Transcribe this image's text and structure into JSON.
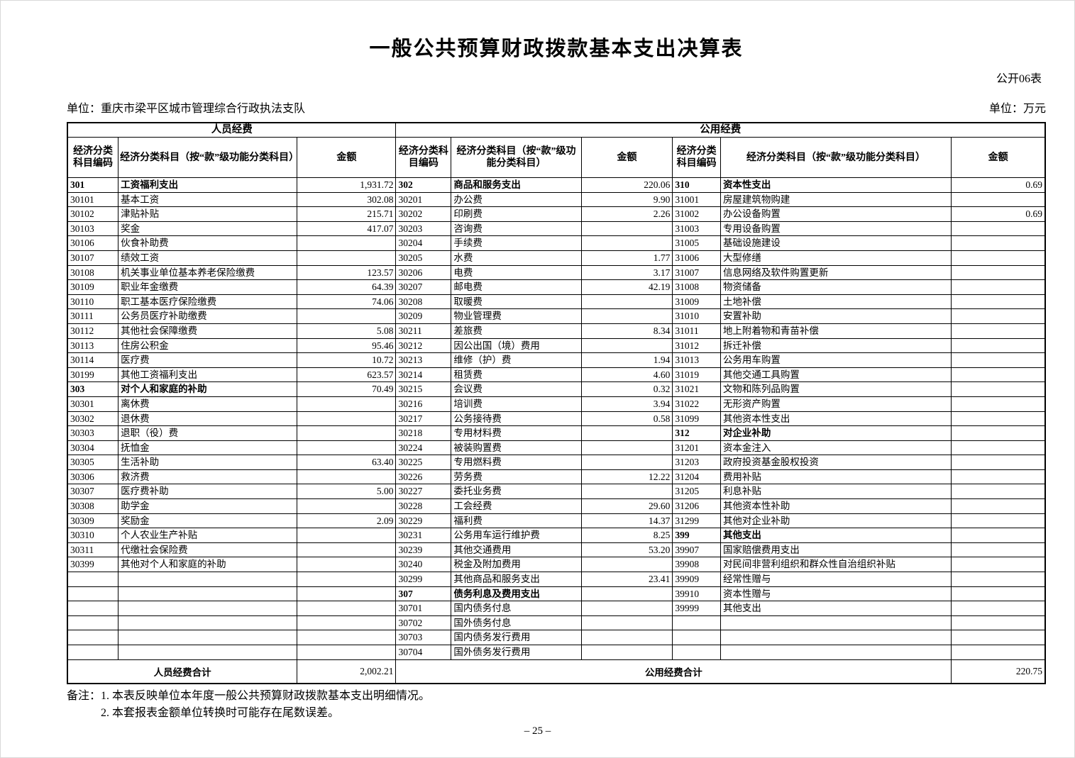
{
  "page": {
    "title": "一般公共预算财政拨款基本支出决算表",
    "form_code": "公开06表",
    "unit_left": "单位：重庆市梁平区城市管理综合行政执法支队",
    "unit_right": "单位：万元",
    "page_number": "–  25  –"
  },
  "notes": {
    "label": "备注：",
    "line1": "1. 本表反映单位本年度一般公共预算财政拨款基本支出明细情况。",
    "line2": "2. 本套报表金额单位转换时可能存在尾数误差。"
  },
  "table": {
    "group_headers": {
      "personnel": "人员经费",
      "public": "公用经费"
    },
    "column_headers": {
      "code": "经济分类科目编码",
      "subject": "经济分类科目（按“款”级功能分类科目）",
      "amount": "金额"
    },
    "totals": {
      "personnel_label": "人员经费合计",
      "personnel_amount": "2,002.21",
      "public_label": "公用经费合计",
      "public_amount": "220.75"
    },
    "sections": {
      "personnel": [
        {
          "code": "301",
          "name": "工资福利支出",
          "amount": "1,931.72",
          "cat": true
        },
        {
          "code": "30101",
          "name": "基本工资",
          "amount": "302.08"
        },
        {
          "code": "30102",
          "name": "津贴补贴",
          "amount": "215.71"
        },
        {
          "code": "30103",
          "name": "奖金",
          "amount": "417.07"
        },
        {
          "code": "30106",
          "name": "伙食补助费",
          "amount": ""
        },
        {
          "code": "30107",
          "name": "绩效工资",
          "amount": ""
        },
        {
          "code": "30108",
          "name": "机关事业单位基本养老保险缴费",
          "amount": "123.57"
        },
        {
          "code": "30109",
          "name": "职业年金缴费",
          "amount": "64.39"
        },
        {
          "code": "30110",
          "name": "职工基本医疗保险缴费",
          "amount": "74.06"
        },
        {
          "code": "30111",
          "name": "公务员医疗补助缴费",
          "amount": ""
        },
        {
          "code": "30112",
          "name": "其他社会保障缴费",
          "amount": "5.08"
        },
        {
          "code": "30113",
          "name": "住房公积金",
          "amount": "95.46"
        },
        {
          "code": "30114",
          "name": "医疗费",
          "amount": "10.72"
        },
        {
          "code": "30199",
          "name": "其他工资福利支出",
          "amount": "623.57"
        },
        {
          "code": "303",
          "name": "对个人和家庭的补助",
          "amount": "70.49",
          "cat": true
        },
        {
          "code": "30301",
          "name": "离休费",
          "amount": ""
        },
        {
          "code": "30302",
          "name": "退休费",
          "amount": ""
        },
        {
          "code": "30303",
          "name": "退职（役）费",
          "amount": ""
        },
        {
          "code": "30304",
          "name": "抚恤金",
          "amount": ""
        },
        {
          "code": "30305",
          "name": "生活补助",
          "amount": "63.40"
        },
        {
          "code": "30306",
          "name": "救济费",
          "amount": ""
        },
        {
          "code": "30307",
          "name": "医疗费补助",
          "amount": "5.00"
        },
        {
          "code": "30308",
          "name": "助学金",
          "amount": ""
        },
        {
          "code": "30309",
          "name": "奖励金",
          "amount": "2.09"
        },
        {
          "code": "30310",
          "name": "个人农业生产补贴",
          "amount": ""
        },
        {
          "code": "30311",
          "name": "代缴社会保险费",
          "amount": ""
        },
        {
          "code": "30399",
          "name": "其他对个人和家庭的补助",
          "amount": ""
        },
        {
          "code": "",
          "name": "",
          "amount": ""
        },
        {
          "code": "",
          "name": "",
          "amount": ""
        },
        {
          "code": "",
          "name": "",
          "amount": ""
        },
        {
          "code": "",
          "name": "",
          "amount": ""
        },
        {
          "code": "",
          "name": "",
          "amount": ""
        },
        {
          "code": "",
          "name": "",
          "amount": ""
        }
      ],
      "public_goods": [
        {
          "code": "302",
          "name": "商品和服务支出",
          "amount": "220.06",
          "cat": true
        },
        {
          "code": "30201",
          "name": "办公费",
          "amount": "9.90"
        },
        {
          "code": "30202",
          "name": "印刷费",
          "amount": "2.26"
        },
        {
          "code": "30203",
          "name": "咨询费",
          "amount": ""
        },
        {
          "code": "30204",
          "name": "手续费",
          "amount": ""
        },
        {
          "code": "30205",
          "name": "水费",
          "amount": "1.77"
        },
        {
          "code": "30206",
          "name": "电费",
          "amount": "3.17"
        },
        {
          "code": "30207",
          "name": "邮电费",
          "amount": "42.19"
        },
        {
          "code": "30208",
          "name": "取暖费",
          "amount": ""
        },
        {
          "code": "30209",
          "name": "物业管理费",
          "amount": ""
        },
        {
          "code": "30211",
          "name": "差旅费",
          "amount": "8.34"
        },
        {
          "code": "30212",
          "name": "因公出国（境）费用",
          "amount": ""
        },
        {
          "code": "30213",
          "name": "维修（护）费",
          "amount": "1.94"
        },
        {
          "code": "30214",
          "name": "租赁费",
          "amount": "4.60"
        },
        {
          "code": "30215",
          "name": "会议费",
          "amount": "0.32"
        },
        {
          "code": "30216",
          "name": "培训费",
          "amount": "3.94"
        },
        {
          "code": "30217",
          "name": "公务接待费",
          "amount": "0.58"
        },
        {
          "code": "30218",
          "name": "专用材料费",
          "amount": ""
        },
        {
          "code": "30224",
          "name": "被装购置费",
          "amount": ""
        },
        {
          "code": "30225",
          "name": "专用燃料费",
          "amount": ""
        },
        {
          "code": "30226",
          "name": "劳务费",
          "amount": "12.22"
        },
        {
          "code": "30227",
          "name": "委托业务费",
          "amount": ""
        },
        {
          "code": "30228",
          "name": "工会经费",
          "amount": "29.60"
        },
        {
          "code": "30229",
          "name": "福利费",
          "amount": "14.37"
        },
        {
          "code": "30231",
          "name": "公务用车运行维护费",
          "amount": "8.25"
        },
        {
          "code": "30239",
          "name": "其他交通费用",
          "amount": "53.20"
        },
        {
          "code": "30240",
          "name": "税金及附加费用",
          "amount": ""
        },
        {
          "code": "30299",
          "name": "其他商品和服务支出",
          "amount": "23.41"
        },
        {
          "code": "307",
          "name": "债务利息及费用支出",
          "amount": "",
          "cat": true
        },
        {
          "code": "30701",
          "name": "国内债务付息",
          "amount": ""
        },
        {
          "code": "30702",
          "name": "国外债务付息",
          "amount": ""
        },
        {
          "code": "30703",
          "name": "国内债务发行费用",
          "amount": ""
        },
        {
          "code": "30704",
          "name": "国外债务发行费用",
          "amount": ""
        }
      ],
      "public_capital": [
        {
          "code": "310",
          "name": "资本性支出",
          "amount": "0.69",
          "cat": true
        },
        {
          "code": "31001",
          "name": "房屋建筑物购建",
          "amount": ""
        },
        {
          "code": "31002",
          "name": "办公设备购置",
          "amount": "0.69"
        },
        {
          "code": "31003",
          "name": "专用设备购置",
          "amount": ""
        },
        {
          "code": "31005",
          "name": "基础设施建设",
          "amount": ""
        },
        {
          "code": "31006",
          "name": "大型修缮",
          "amount": ""
        },
        {
          "code": "31007",
          "name": "信息网络及软件购置更新",
          "amount": ""
        },
        {
          "code": "31008",
          "name": "物资储备",
          "amount": ""
        },
        {
          "code": "31009",
          "name": "土地补偿",
          "amount": ""
        },
        {
          "code": "31010",
          "name": "安置补助",
          "amount": ""
        },
        {
          "code": "31011",
          "name": "地上附着物和青苗补偿",
          "amount": ""
        },
        {
          "code": "31012",
          "name": "拆迁补偿",
          "amount": ""
        },
        {
          "code": "31013",
          "name": "公务用车购置",
          "amount": ""
        },
        {
          "code": "31019",
          "name": "其他交通工具购置",
          "amount": ""
        },
        {
          "code": "31021",
          "name": "文物和陈列品购置",
          "amount": ""
        },
        {
          "code": "31022",
          "name": "无形资产购置",
          "amount": ""
        },
        {
          "code": "31099",
          "name": "其他资本性支出",
          "amount": ""
        },
        {
          "code": "312",
          "name": "对企业补助",
          "amount": "",
          "cat": true
        },
        {
          "code": "31201",
          "name": "资本金注入",
          "amount": ""
        },
        {
          "code": "31203",
          "name": "政府投资基金股权投资",
          "amount": ""
        },
        {
          "code": "31204",
          "name": "费用补贴",
          "amount": ""
        },
        {
          "code": "31205",
          "name": "利息补贴",
          "amount": ""
        },
        {
          "code": "31206",
          "name": "其他资本性补助",
          "amount": ""
        },
        {
          "code": "31299",
          "name": "其他对企业补助",
          "amount": ""
        },
        {
          "code": "399",
          "name": "其他支出",
          "amount": "",
          "cat": true
        },
        {
          "code": "39907",
          "name": "国家赔偿费用支出",
          "amount": ""
        },
        {
          "code": "39908",
          "name": "对民间非营利组织和群众性自治组织补贴",
          "amount": ""
        },
        {
          "code": "39909",
          "name": "经常性赠与",
          "amount": ""
        },
        {
          "code": "39910",
          "name": "资本性赠与",
          "amount": ""
        },
        {
          "code": "39999",
          "name": "其他支出",
          "amount": ""
        },
        {
          "code": "",
          "name": "",
          "amount": ""
        },
        {
          "code": "",
          "name": "",
          "amount": ""
        },
        {
          "code": "",
          "name": "",
          "amount": ""
        }
      ]
    }
  }
}
